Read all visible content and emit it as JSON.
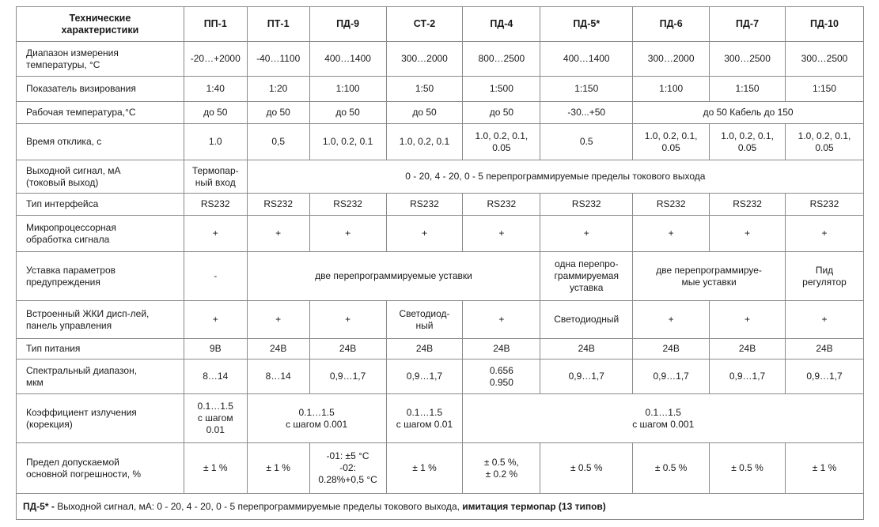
{
  "header": [
    "Технические\nхарактеристики",
    "ПП-1",
    "ПТ-1",
    "ПД-9",
    "СТ-2",
    "ПД-4",
    "ПД-5*",
    "ПД-6",
    "ПД-7",
    "ПД-10"
  ],
  "rows": [
    {
      "label": "Диапазон измерения\nтемпературы, °С",
      "cells": [
        {
          "t": "-20…+2000"
        },
        {
          "t": "-40…1100"
        },
        {
          "t": "400…1400"
        },
        {
          "t": "300…2000"
        },
        {
          "t": "800…2500"
        },
        {
          "t": "400…1400"
        },
        {
          "t": "300…2000"
        },
        {
          "t": "300…2500"
        },
        {
          "t": "300…2500"
        }
      ]
    },
    {
      "label": "Показатель визирования",
      "cells": [
        {
          "t": "1:40"
        },
        {
          "t": "1:20"
        },
        {
          "t": "1:100"
        },
        {
          "t": "1:50"
        },
        {
          "t": "1:500"
        },
        {
          "t": "1:150"
        },
        {
          "t": "1:100"
        },
        {
          "t": "1:150"
        },
        {
          "t": "1:150"
        }
      ]
    },
    {
      "label": "Рабочая температура,°С",
      "cells": [
        {
          "t": "до 50"
        },
        {
          "t": "до 50"
        },
        {
          "t": "до 50"
        },
        {
          "t": "до 50"
        },
        {
          "t": "до 50"
        },
        {
          "t": "-30...+50"
        },
        {
          "t": "до 50       Кабель до 150",
          "span": 3
        }
      ]
    },
    {
      "label": "Время отклика, с",
      "cells": [
        {
          "t": "1.0"
        },
        {
          "t": "0,5"
        },
        {
          "t": "1.0, 0.2, 0.1"
        },
        {
          "t": "1.0, 0.2, 0.1"
        },
        {
          "t": "1.0, 0.2, 0.1,\n0.05"
        },
        {
          "t": "0.5"
        },
        {
          "t": "1.0, 0.2, 0.1,\n0.05"
        },
        {
          "t": "1.0, 0.2, 0.1,\n0.05"
        },
        {
          "t": "1.0, 0.2, 0.1,\n0.05"
        }
      ]
    },
    {
      "label": "Выходной сигнал, мА\n(токовый выход)",
      "cells": [
        {
          "t": "Термопар-\nный вход"
        },
        {
          "t": "0 - 20, 4 - 20, 0 - 5 перепрограммируемые пределы токового выхода",
          "span": 8
        }
      ]
    },
    {
      "label": "Тип интерфейса",
      "cells": [
        {
          "t": "RS232"
        },
        {
          "t": "RS232"
        },
        {
          "t": "RS232"
        },
        {
          "t": "RS232"
        },
        {
          "t": "RS232"
        },
        {
          "t": "RS232"
        },
        {
          "t": "RS232"
        },
        {
          "t": "RS232"
        },
        {
          "t": "RS232"
        }
      ]
    },
    {
      "label": "Микропроцессорная\nобработка сигнала",
      "cells": [
        {
          "t": "+"
        },
        {
          "t": "+"
        },
        {
          "t": "+"
        },
        {
          "t": "+"
        },
        {
          "t": "+"
        },
        {
          "t": "+"
        },
        {
          "t": "+"
        },
        {
          "t": "+"
        },
        {
          "t": "+"
        }
      ]
    },
    {
      "label": "Уставка параметров\nпредупреждения",
      "cells": [
        {
          "t": "-"
        },
        {
          "t": "две перепрограммируемые уставки",
          "span": 4
        },
        {
          "t": "одна перепро-\nграммируемая\nуставка"
        },
        {
          "t": "две перепрограммируе-\nмые уставки",
          "span": 2
        },
        {
          "t": "Пид\nрегулятор"
        }
      ]
    },
    {
      "label": "Встроенный ЖКИ дисп-лей,\nпанель управления",
      "cells": [
        {
          "t": "+"
        },
        {
          "t": "+"
        },
        {
          "t": "+"
        },
        {
          "t": "Светодиод-\nный"
        },
        {
          "t": "+"
        },
        {
          "t": "Светодиодный"
        },
        {
          "t": "+"
        },
        {
          "t": "+"
        },
        {
          "t": "+"
        }
      ]
    },
    {
      "label": "Тип питания",
      "cells": [
        {
          "t": "9В"
        },
        {
          "t": "24В"
        },
        {
          "t": "24В"
        },
        {
          "t": "24В"
        },
        {
          "t": "24В"
        },
        {
          "t": "24В"
        },
        {
          "t": "24В"
        },
        {
          "t": "24В"
        },
        {
          "t": "24В"
        }
      ]
    },
    {
      "label": "Спектральный диапазон,\nмкм",
      "cells": [
        {
          "t": "8…14"
        },
        {
          "t": "8…14"
        },
        {
          "t": "0,9…1,7"
        },
        {
          "t": "0,9…1,7"
        },
        {
          "t": "0.656\n0.950"
        },
        {
          "t": "0,9…1,7"
        },
        {
          "t": "0,9…1,7"
        },
        {
          "t": "0,9…1,7"
        },
        {
          "t": "0,9…1,7"
        }
      ]
    },
    {
      "label": "Коэффициент излучения\n(корекция)",
      "cells": [
        {
          "t": "0.1…1.5\nс шагом\n0.01"
        },
        {
          "t": "0.1…1.5\nс шагом 0.001",
          "span": 2
        },
        {
          "t": "0.1…1.5\nс шагом 0.01"
        },
        {
          "t": "0.1…1.5\nс шагом 0.001",
          "span": 5
        }
      ]
    },
    {
      "label": "Предел допускаемой\nосновной погрешности, %",
      "cells": [
        {
          "t": "± 1 %"
        },
        {
          "t": "± 1 %"
        },
        {
          "t": "-01:  ±5 °C\n-02:\n0.28%+0,5 °C"
        },
        {
          "t": "± 1 %"
        },
        {
          "t": "± 0.5 %,\n± 0.2 %"
        },
        {
          "t": "± 0.5 %"
        },
        {
          "t": "± 0.5 %"
        },
        {
          "t": "± 0.5 %"
        },
        {
          "t": "± 1 %"
        }
      ]
    }
  ],
  "footnote": {
    "lead": "ПД-5* - ",
    "text": " Выходной сигнал, мА:  0 - 20, 4 - 20, 0 - 5 перепрограммируемые пределы токового выхода, ",
    "bold_tail": "имитация термопар (13 типов)"
  }
}
